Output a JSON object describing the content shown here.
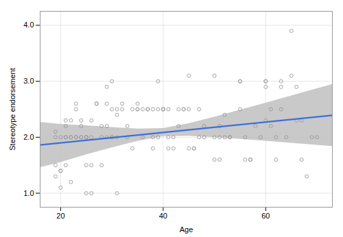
{
  "chart_data": {
    "type": "scatter",
    "xlabel": "Age",
    "ylabel": "Stereotype endorsement",
    "xlim": [
      16,
      73
    ],
    "ylim": [
      0.75,
      4.25
    ],
    "xticks": [
      20,
      40,
      60
    ],
    "yticks": [
      1,
      2,
      3,
      4
    ],
    "grid": true,
    "series": [
      {
        "type": "area",
        "color": "#c0c0c0",
        "x": [
          16,
          20,
          25,
          30,
          35,
          40,
          45,
          50,
          55,
          60,
          65,
          70,
          73
        ],
        "lower": [
          1.457367,
          1.54964,
          1.686552,
          1.81116,
          1.928453,
          2.012424,
          2.021043,
          1.99634,
          1.964322,
          1.93,
          1.894685,
          1.858868,
          1.837226
        ],
        "upper": [
          2.268921,
          2.23072,
          2.206398,
          2.17438,
          2.149677,
          2.158296,
          2.242267,
          2.35956,
          2.484168,
          2.61072,
          2.738985,
          2.867392,
          2.944588
        ]
      },
      {
        "type": "scatter",
        "color": "#999999",
        "marker": "circle",
        "x": [
          19,
          19,
          19,
          19,
          20,
          20,
          20,
          20,
          21,
          21,
          21,
          21,
          21,
          22,
          22,
          22,
          22,
          23,
          23,
          23,
          23,
          24,
          24,
          24,
          24,
          25,
          25,
          25,
          25,
          25,
          26,
          26,
          26,
          26,
          27,
          27,
          28,
          28,
          28,
          29,
          29,
          29,
          29,
          30,
          30,
          30,
          30,
          31,
          31,
          31,
          31,
          32,
          32,
          33,
          33,
          34,
          34,
          35,
          35,
          35,
          36,
          36,
          37,
          37,
          38,
          38,
          38,
          39,
          39,
          39,
          40,
          40,
          40,
          41,
          41,
          41,
          42,
          42,
          43,
          43,
          44,
          44,
          45,
          45,
          45,
          46,
          46,
          47,
          47,
          48,
          48,
          50,
          50,
          50,
          51,
          51,
          51,
          52,
          52,
          53,
          53,
          55,
          55,
          55,
          56,
          56,
          57,
          57,
          58,
          59,
          60,
          60,
          60,
          60,
          61,
          61,
          62,
          62,
          63,
          63,
          63,
          64,
          65,
          65,
          66,
          66,
          67,
          67,
          68,
          69,
          70
        ],
        "values": [
          1.3,
          2.0,
          2.1,
          1.5,
          1.4,
          1.4,
          1.1,
          2.0,
          2.0,
          2.2,
          2.0,
          2.3,
          1.5,
          1.2,
          2.0,
          2.3,
          2.0,
          2.0,
          2.0,
          2.5,
          2.6,
          2.2,
          2.3,
          2.0,
          2.0,
          2.0,
          2.0,
          2.0,
          1.5,
          1.0,
          2.0,
          1.5,
          2.3,
          1.0,
          2.6,
          2.6,
          2.2,
          2.0,
          1.5,
          2.0,
          2.2,
          2.9,
          2.6,
          2.0,
          2.5,
          3.0,
          2.0,
          2.4,
          2.0,
          2.5,
          1.0,
          2.5,
          2.6,
          2.0,
          2.2,
          2.5,
          1.8,
          2.5,
          2.5,
          2.6,
          2.5,
          2.0,
          2.5,
          2.5,
          2.5,
          2.0,
          1.8,
          2.0,
          2.5,
          3.0,
          2.5,
          2.5,
          2.5,
          2.5,
          2.0,
          1.8,
          2.0,
          1.8,
          2.2,
          2.5,
          2.5,
          2.5,
          2.5,
          3.1,
          1.8,
          1.8,
          1.8,
          2.0,
          2.5,
          2.2,
          2.0,
          2.0,
          3.1,
          1.6,
          2.2,
          2.0,
          1.6,
          2.4,
          2.0,
          2.0,
          2.0,
          2.5,
          3.0,
          3.0,
          2.0,
          1.6,
          1.6,
          1.6,
          2.2,
          2.0,
          2.3,
          3.0,
          3.0,
          2.9,
          2.5,
          2.2,
          2.0,
          1.6,
          2.5,
          2.9,
          3.0,
          2.0,
          3.1,
          3.9,
          2.3,
          2.9,
          2.3,
          1.6,
          1.3,
          2.0,
          2.0
        ]
      },
      {
        "type": "line",
        "color": "#3c6fd9",
        "x": [
          16,
          73
        ],
        "values": [
          1.863144,
          2.390907
        ]
      }
    ]
  }
}
